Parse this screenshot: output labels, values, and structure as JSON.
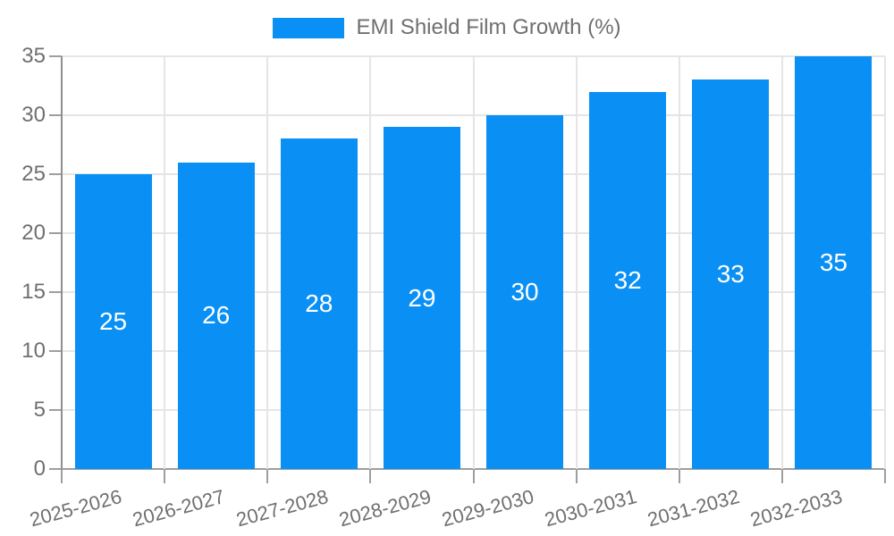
{
  "chart_data": {
    "type": "bar",
    "title": "EMI Shield Film Growth (%)",
    "categories": [
      "2025-2026",
      "2026-2027",
      "2027-2028",
      "2028-2029",
      "2029-2030",
      "2030-2031",
      "2031-2032",
      "2032-2033"
    ],
    "values": [
      25,
      26,
      28,
      29,
      30,
      32,
      33,
      35
    ],
    "series": [
      {
        "name": "EMI Shield Film Growth (%)",
        "values": [
          25,
          26,
          28,
          29,
          30,
          32,
          33,
          35
        ]
      }
    ],
    "xlabel": "",
    "ylabel": "",
    "ylim": [
      0,
      35
    ],
    "y_ticks": [
      0,
      5,
      10,
      15,
      20,
      25,
      30,
      35
    ],
    "grid": true,
    "legend_position": "top",
    "bar_color": "#0a90f4",
    "value_label_color": "#ffffff",
    "axis_text_color": "#6f6f6f",
    "grid_color": "#e5e5e5",
    "axis_line_color": "#9e9e9e"
  }
}
